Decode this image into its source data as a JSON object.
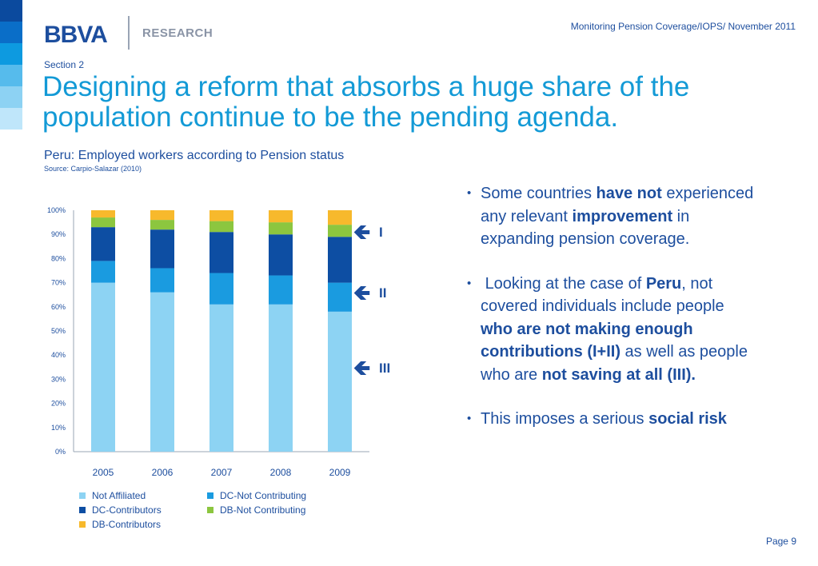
{
  "header": {
    "logo_text": "BBVA",
    "unit": "RESEARCH",
    "report": "Monitoring Pension Coverage/IOPS/ November 2011"
  },
  "section": "Section 2",
  "title": "Designing a reform that absorbs a huge share of the population continue to be the pending agenda.",
  "chart_heading": "Peru: Employed workers according to Pension status",
  "chart_source": "Source: Carpio-Salazar (2010)",
  "stripe_colors": [
    "#0b4a9e",
    "#0a6ec8",
    "#0d9ae0",
    "#56bbec",
    "#8dd2f3",
    "#bfe6fa"
  ],
  "chart_data": {
    "type": "bar",
    "stacked": true,
    "categories": [
      "2005",
      "2006",
      "2007",
      "2008",
      "2009"
    ],
    "ylim": [
      0,
      100
    ],
    "yticks": [
      "0%",
      "10%",
      "20%",
      "30%",
      "40%",
      "50%",
      "60%",
      "70%",
      "80%",
      "90%",
      "100%"
    ],
    "grid": false,
    "legend_position": "bottom",
    "series": [
      {
        "name": "Not Affiliated",
        "color": "#8dd3f3",
        "values": [
          70,
          66,
          61,
          61,
          58
        ]
      },
      {
        "name": "DC-Not Contributing",
        "color": "#1a9be0",
        "values": [
          9,
          10,
          13,
          12,
          12
        ]
      },
      {
        "name": "DC-Contributors",
        "color": "#0d4ea3",
        "values": [
          14,
          16,
          17,
          17,
          19
        ]
      },
      {
        "name": "DB-Not Contributing",
        "color": "#8cc63f",
        "values": [
          4,
          4,
          4.5,
          5,
          5
        ]
      },
      {
        "name": "DB-Contributors",
        "color": "#f7b92c",
        "values": [
          3,
          4,
          4.5,
          5,
          6
        ]
      }
    ],
    "annotations": [
      "I",
      "II",
      "III"
    ]
  },
  "bullets": [
    {
      "segments": [
        {
          "text": "Some countries ",
          "bold": false
        },
        {
          "text": "have not",
          "bold": true
        },
        {
          "text": " experienced any relevant ",
          "bold": false
        },
        {
          "text": "improvement",
          "bold": true
        },
        {
          "text": " in expanding pension coverage.",
          "bold": false
        }
      ]
    },
    {
      "segments": [
        {
          "text": " Looking at the case of ",
          "bold": false
        },
        {
          "text": "Peru",
          "bold": true
        },
        {
          "text": ", not covered individuals include people ",
          "bold": false
        },
        {
          "text": "who are not making enough contributions (I+II)",
          "bold": true
        },
        {
          "text": " as well as people who are ",
          "bold": false
        },
        {
          "text": "not saving at all (III).",
          "bold": true
        }
      ]
    },
    {
      "segments": [
        {
          "text": "This imposes a serious ",
          "bold": false
        },
        {
          "text": "social risk",
          "bold": true
        }
      ]
    }
  ],
  "bullet_char": "•",
  "arrow_char": "🡸",
  "page": "Page 9"
}
